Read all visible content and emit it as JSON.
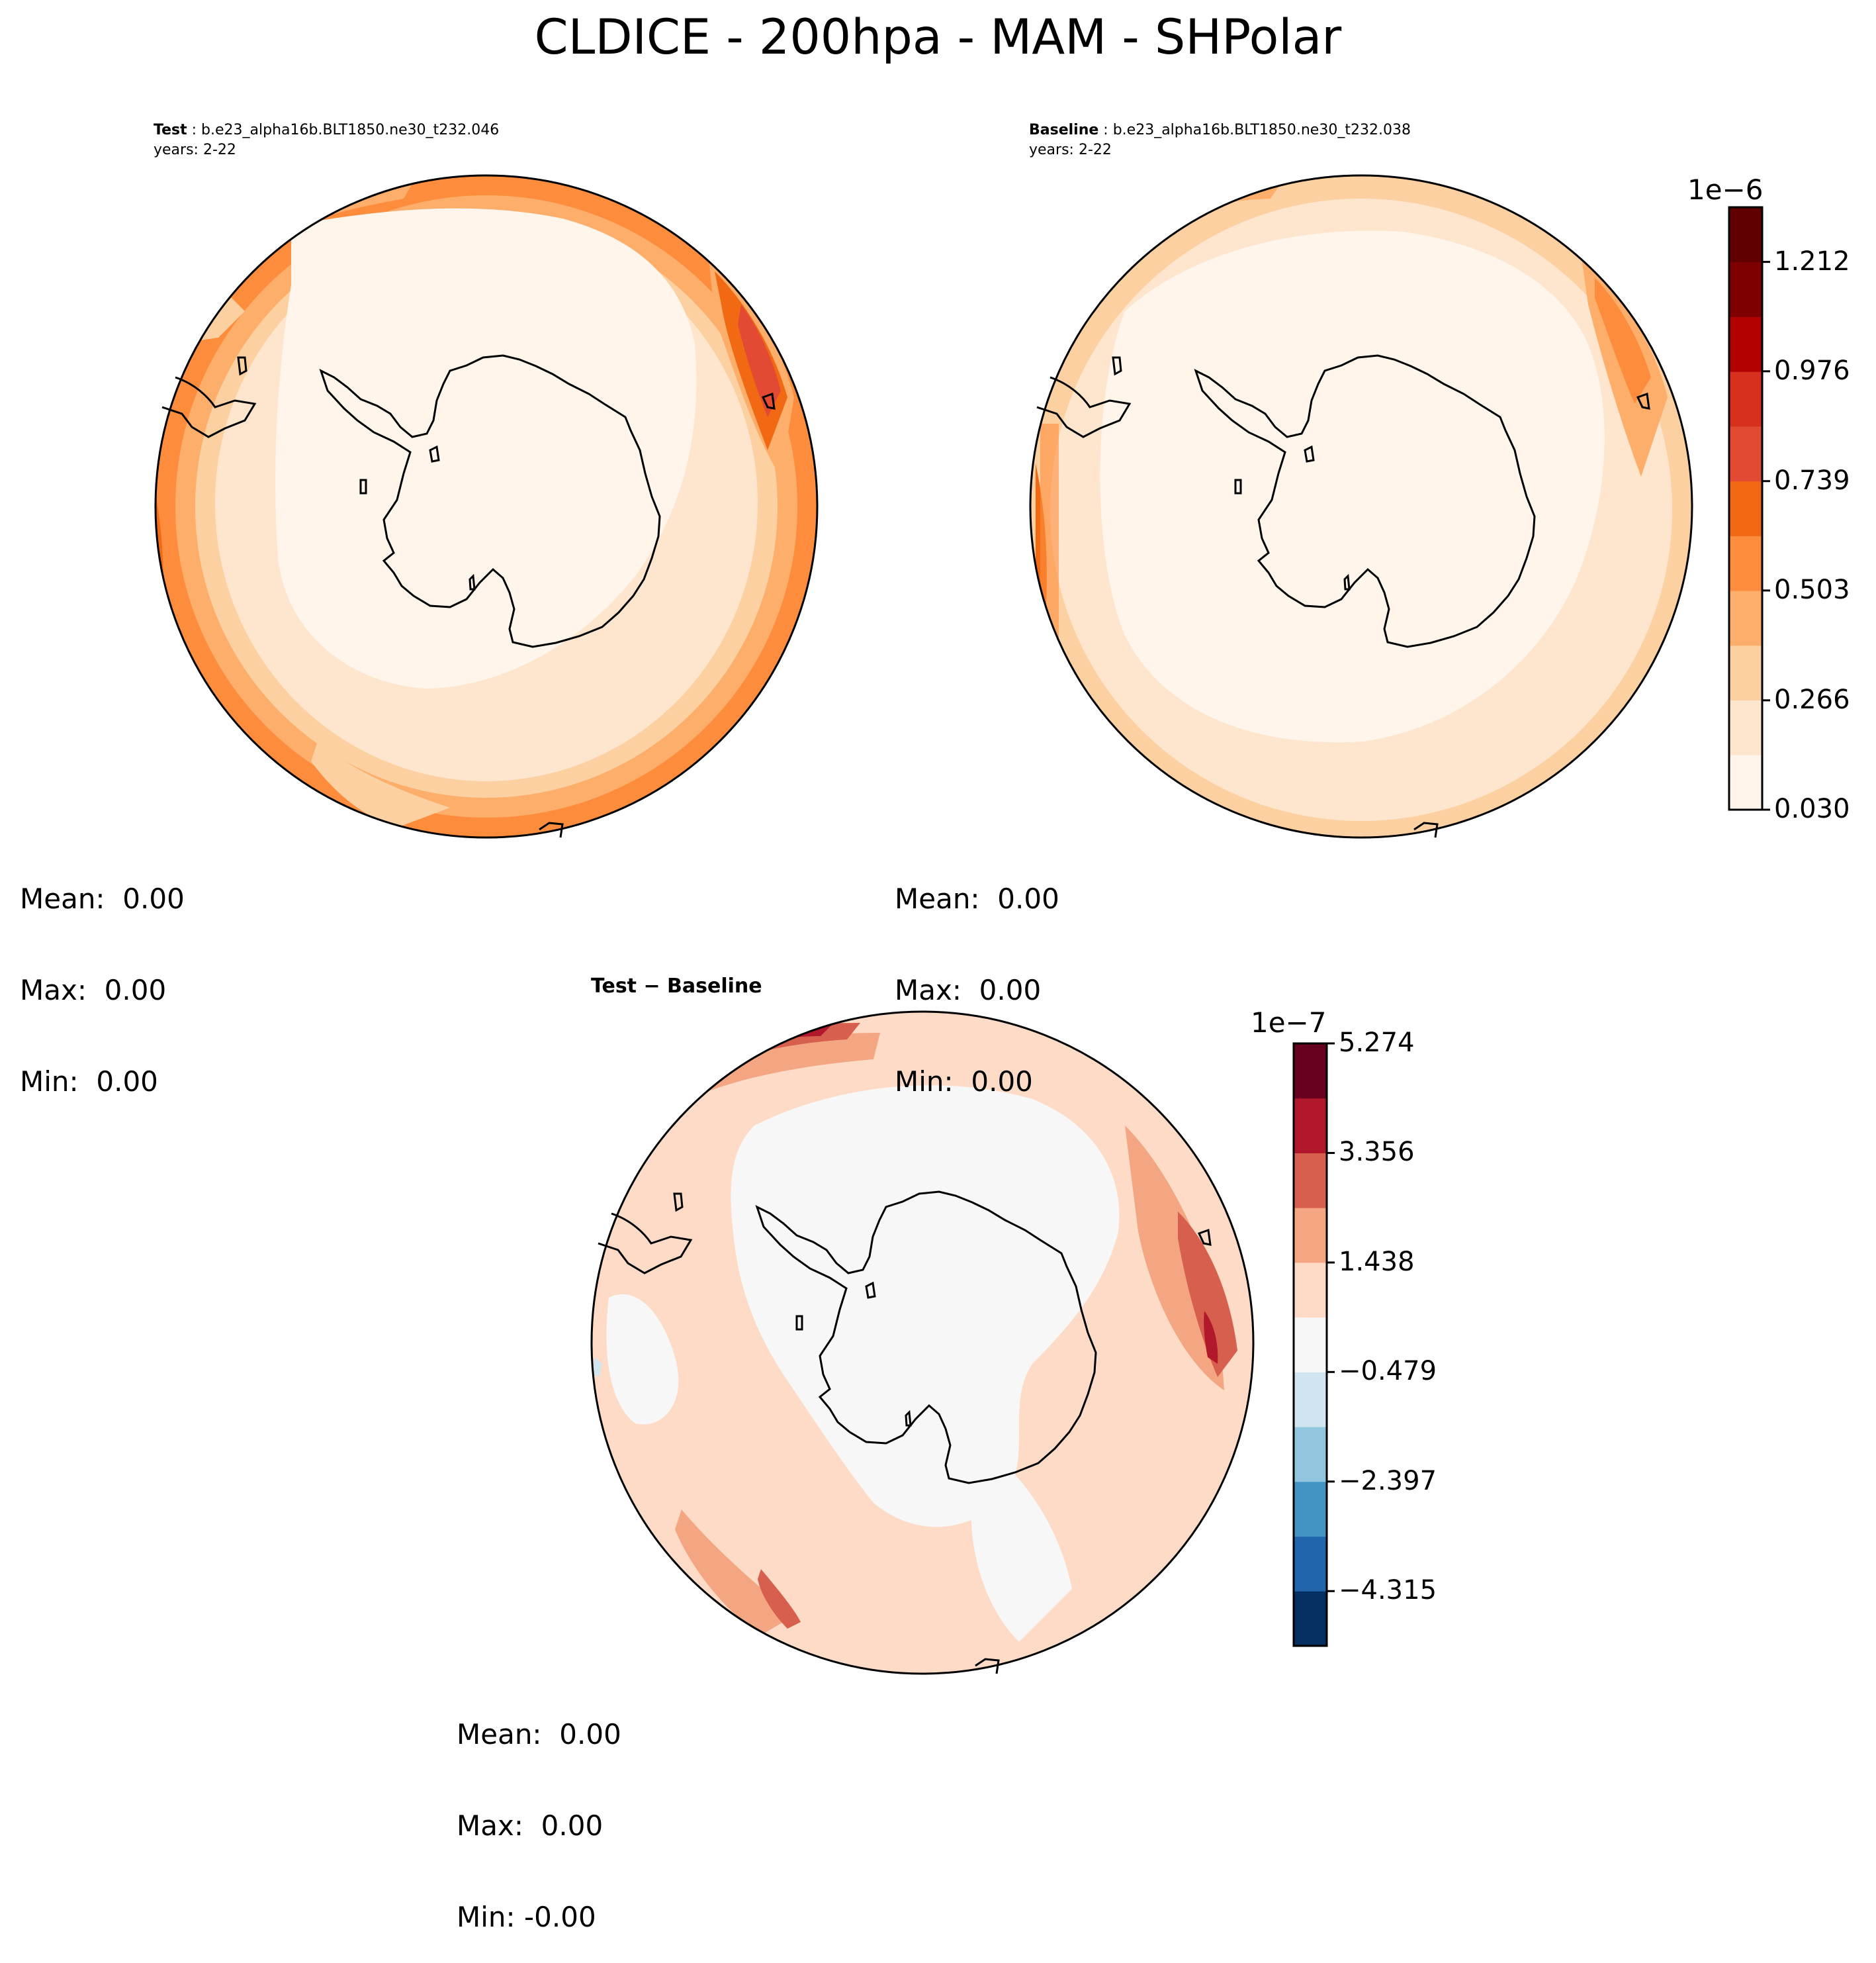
{
  "chart_data": {
    "type": "contour-map",
    "title": "CLDICE - 200hpa - MAM - SHPolar",
    "panels": [
      {
        "id": "test",
        "label": "Test",
        "case": "b.e23_alpha16b.BLT1850.ne30_t232.046",
        "years": "years: 2-22",
        "stats": {
          "mean": "Mean:  0.00",
          "max": "Max:  0.00",
          "min": "Min:  0.00"
        }
      },
      {
        "id": "baseline",
        "label": "Baseline",
        "case": "b.e23_alpha16b.BLT1850.ne30_t232.038",
        "years": "years: 2-22",
        "stats": {
          "mean": "Mean:  0.00",
          "max": "Max:  0.00",
          "min": "Min:  0.00"
        }
      },
      {
        "id": "diff",
        "label": "Test − Baseline",
        "stats": {
          "mean": "Mean:  0.00",
          "max": "Max:  0.00",
          "min": "Min: -0.00"
        }
      }
    ],
    "colorbars": [
      {
        "id": "main",
        "exponent": "1e−6",
        "tick_labels": [
          "0.030",
          "0.266",
          "0.503",
          "0.739",
          "0.976",
          "1.212"
        ],
        "tick_values": [
          0.03,
          0.266,
          0.503,
          0.739,
          0.976,
          1.212
        ],
        "range": [
          0.03,
          1.33
        ],
        "colors": [
          "#fff5eb",
          "#fee6ce",
          "#fdd0a2",
          "#fdae6b",
          "#fd8d3c",
          "#f16913",
          "#e34a33",
          "#d7301f",
          "#b30000",
          "#7f0000",
          "#600000"
        ]
      },
      {
        "id": "diff",
        "exponent": "1e−7",
        "tick_labels": [
          "5.274",
          "3.356",
          "1.438",
          "−0.479",
          "−2.397",
          "−4.315"
        ],
        "tick_values": [
          5.274,
          3.356,
          1.438,
          -0.479,
          -2.397,
          -4.315
        ],
        "range": [
          -5.274,
          5.274
        ],
        "colors": [
          "#053061",
          "#2166ac",
          "#4393c3",
          "#92c5de",
          "#d1e5f0",
          "#f7f7f7",
          "#fddbc7",
          "#f4a582",
          "#d6604d",
          "#b2182b",
          "#67001f"
        ]
      }
    ]
  }
}
